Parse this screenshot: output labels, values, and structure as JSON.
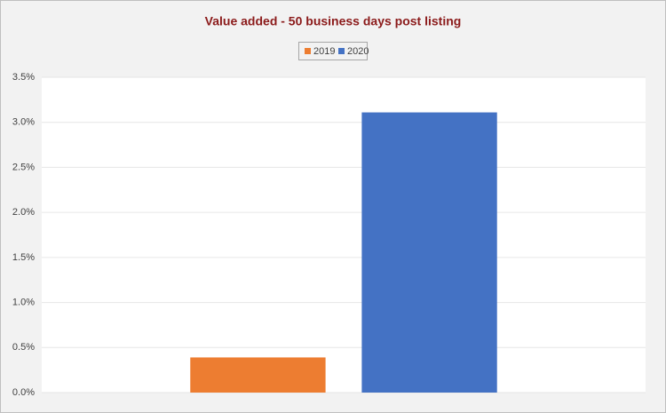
{
  "chart_data": {
    "type": "bar",
    "title": "Value added - 50 business days post listing",
    "categories": [
      null
    ],
    "series": [
      {
        "name": "2019",
        "color": "#ed7d31",
        "values": [
          0.39
        ]
      },
      {
        "name": "2020",
        "color": "#4472c4",
        "values": [
          3.11
        ]
      }
    ],
    "ylim": [
      0,
      3.5
    ],
    "yticks": [
      {
        "value": 0,
        "label": "0.0%"
      },
      {
        "value": 0.5,
        "label": "0.5%"
      },
      {
        "value": 1,
        "label": "1.0%"
      },
      {
        "value": 1.5,
        "label": "1.5%"
      },
      {
        "value": 2,
        "label": "2.0%"
      },
      {
        "value": 2.5,
        "label": "2.5%"
      },
      {
        "value": 3,
        "label": "3.0%"
      },
      {
        "value": 3.5,
        "label": "3.5%"
      }
    ],
    "grid": true,
    "legend": "top"
  }
}
